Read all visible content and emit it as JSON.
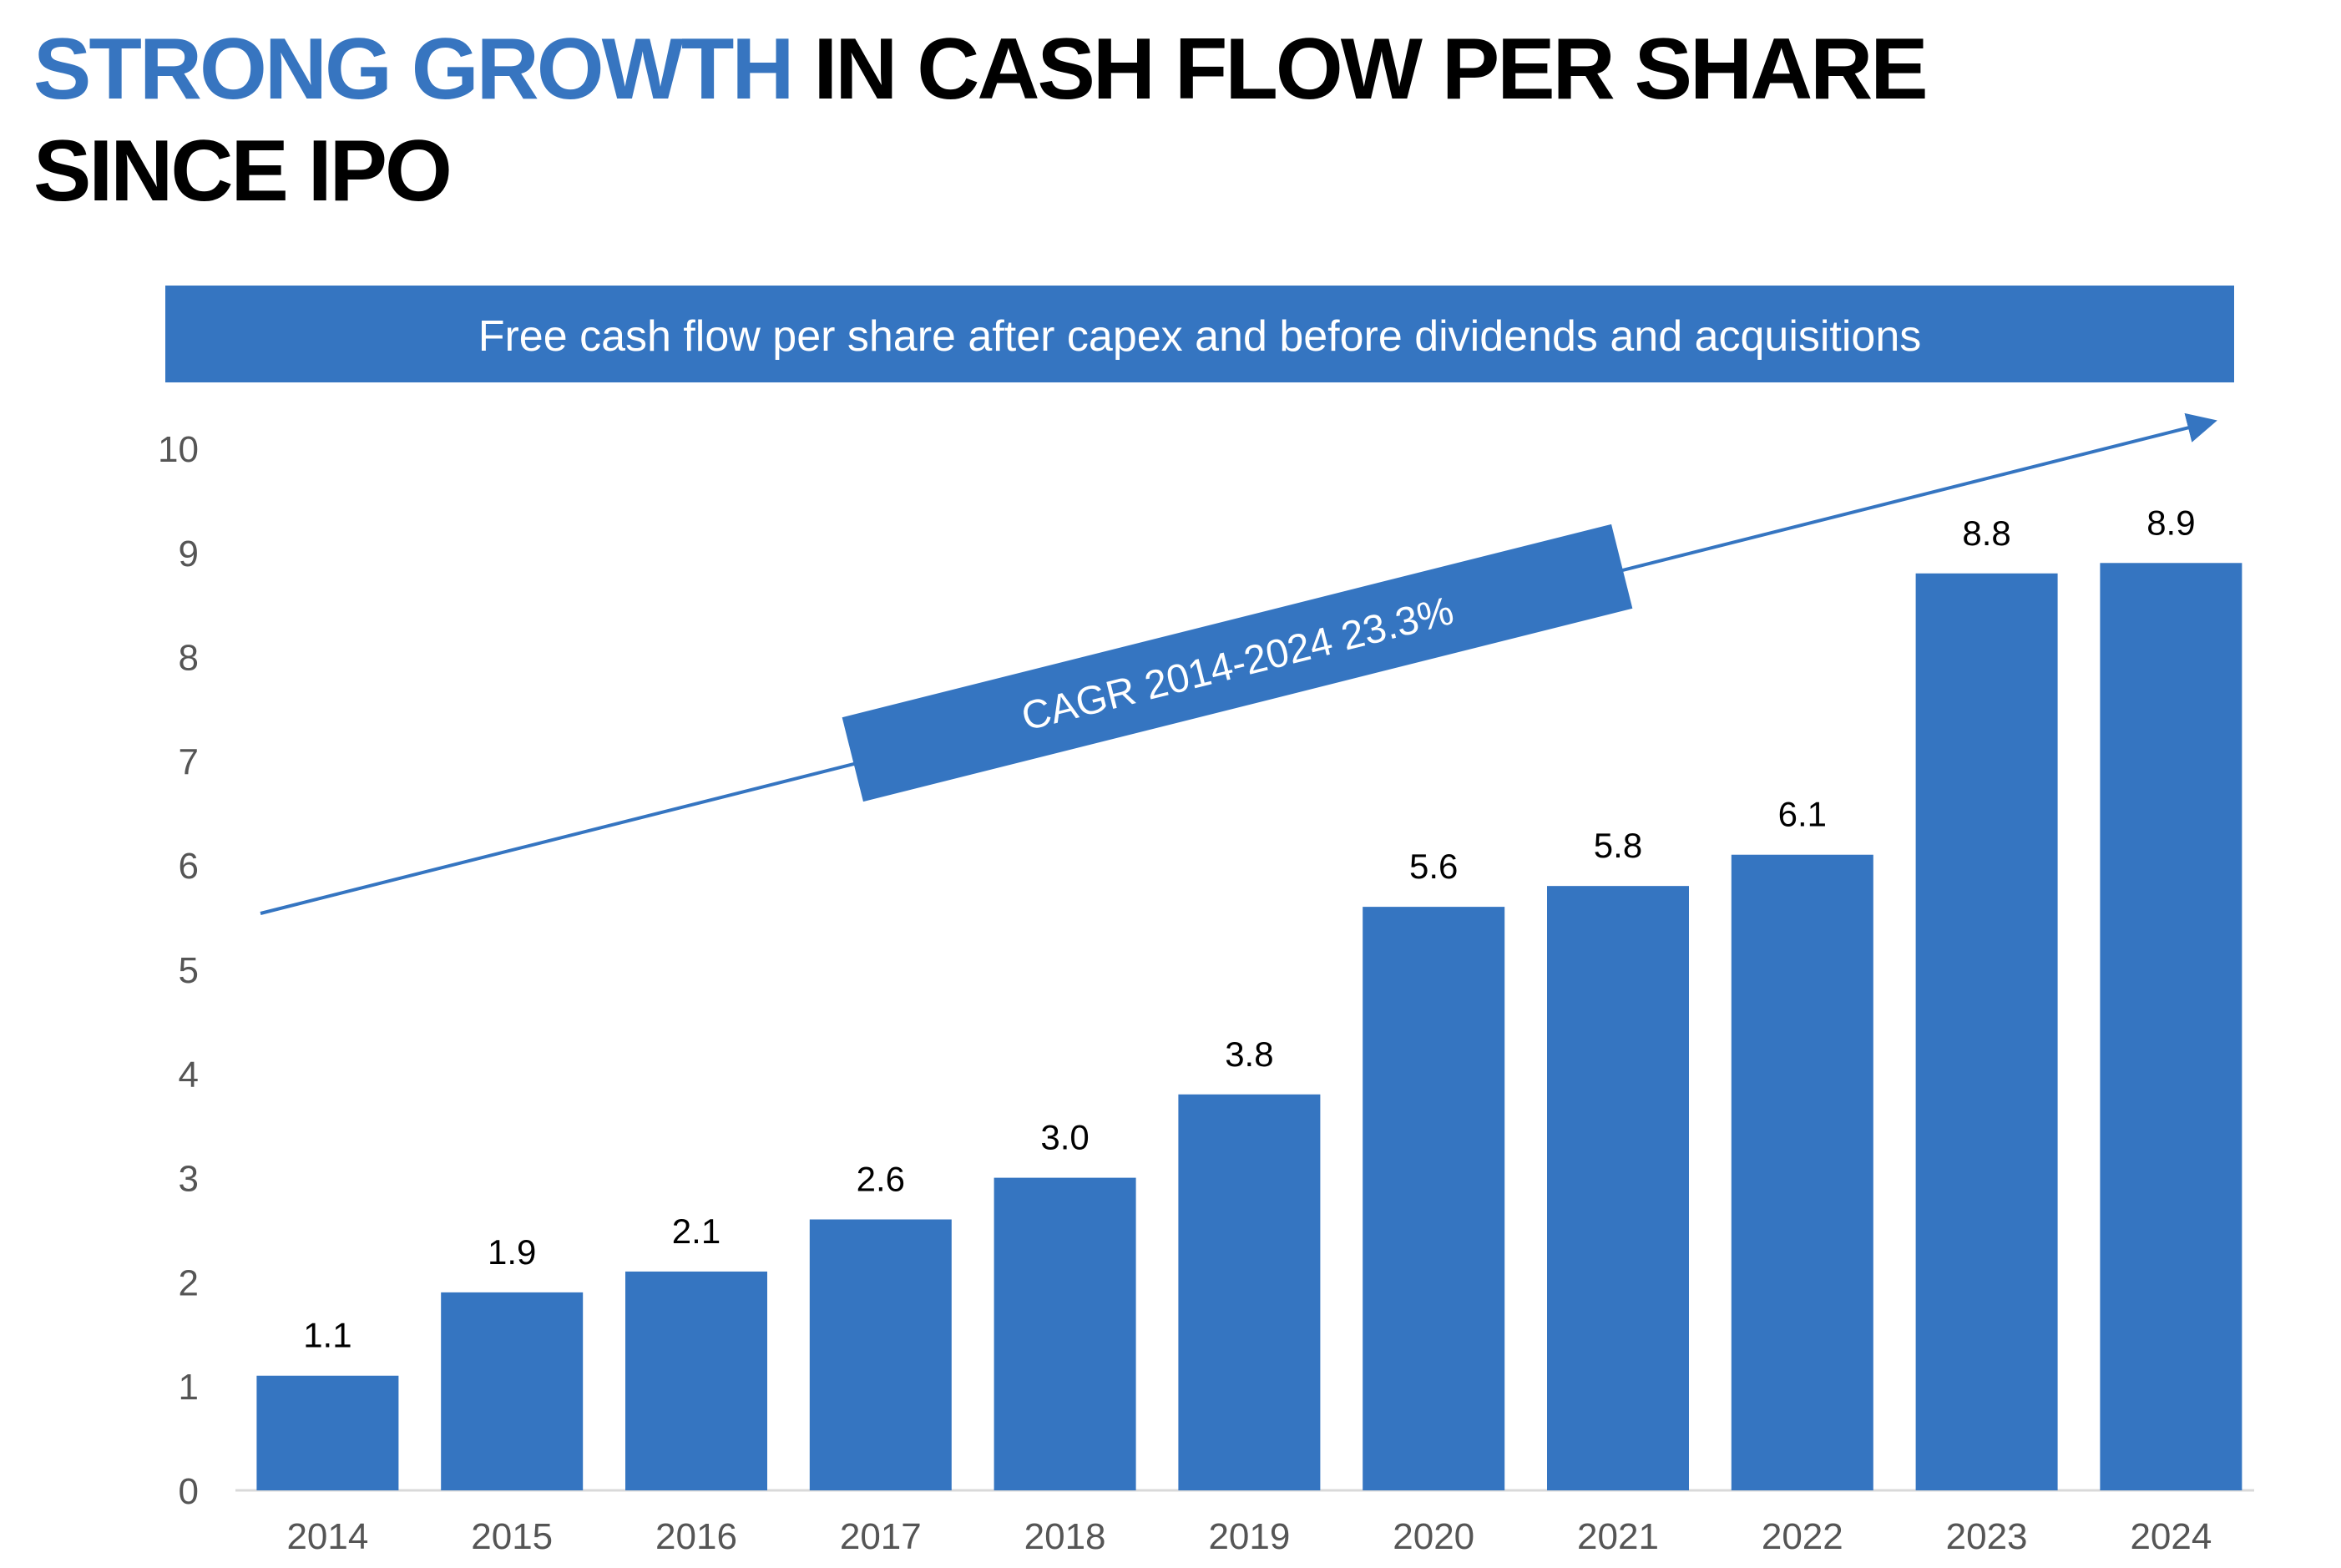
{
  "title": {
    "highlight": "STRONG GROWTH",
    "line1_rest": " IN CASH FLOW PER SHARE",
    "line2": "SINCE IPO"
  },
  "colors": {
    "accent": "#3775c0",
    "bar": "#3575c1",
    "axis_text": "#555555",
    "label_text": "#000000"
  },
  "chart_data": {
    "type": "bar",
    "title": "Free cash flow per share after capex and before dividends and acquisitions",
    "categories": [
      "2014",
      "2015",
      "2016",
      "2017",
      "2018",
      "2019",
      "2020",
      "2021",
      "2022",
      "2023",
      "2024"
    ],
    "values": [
      1.1,
      1.9,
      2.1,
      2.6,
      3.0,
      3.8,
      5.6,
      5.8,
      6.1,
      8.8,
      8.9
    ],
    "value_labels": [
      "1.1",
      "1.9",
      "2.1",
      "2.6",
      "3.0",
      "3.8",
      "5.6",
      "5.8",
      "6.1",
      "8.8",
      "8.9"
    ],
    "ylim": [
      0,
      10
    ],
    "yticks": [
      0,
      1,
      2,
      3,
      4,
      5,
      6,
      7,
      8,
      9,
      10
    ],
    "grid": false,
    "legend": "none",
    "annotation": "CAGR 2014-2024 23.3%"
  }
}
